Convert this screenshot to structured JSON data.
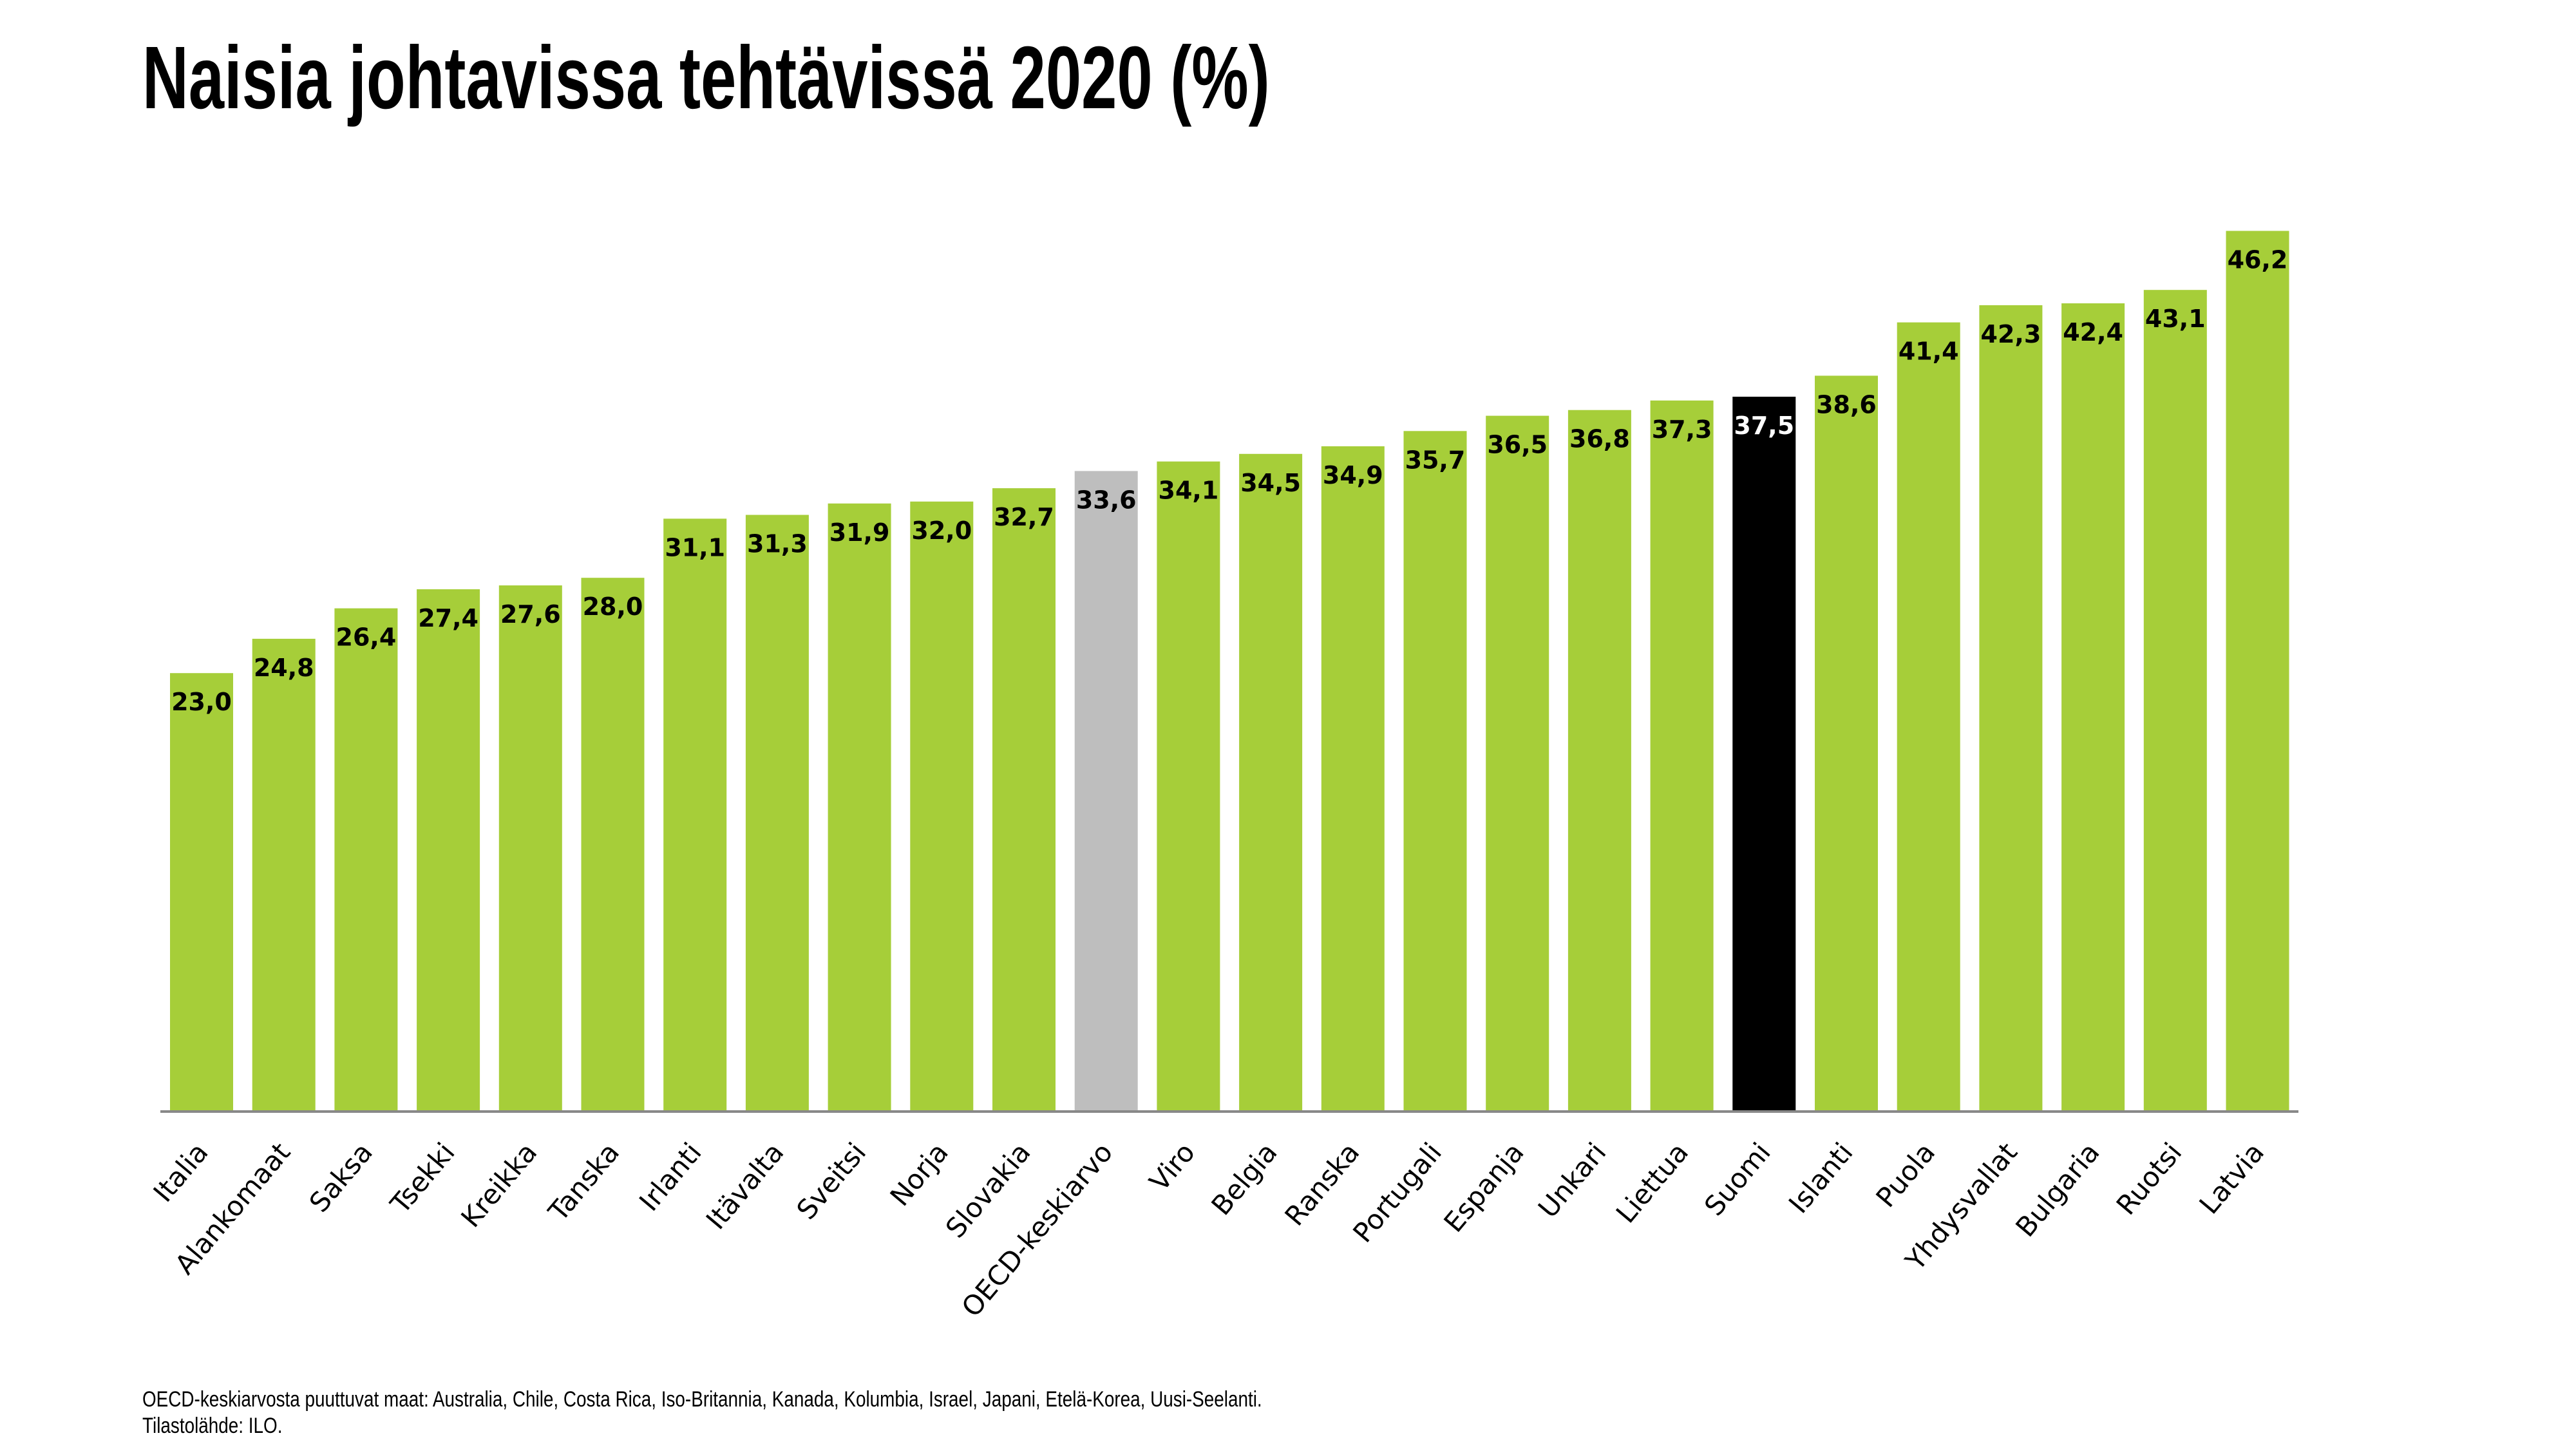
{
  "title": "Naisia johtavissa tehtävissä 2020 (%)",
  "footnote": {
    "line1": "OECD-keskiarvosta puuttuvat maat: Australia, Chile, Costa Rica, Iso-Britannia, Kanada, Kolumbia, Israel, Japani, Etelä-Korea, Uusi-Seelanti.",
    "line2": "Tilastolähde: ILO."
  },
  "colors": {
    "default": "#a6ce39",
    "oecd": "#bebebe",
    "highlight": "#000000",
    "axis": "#888888"
  },
  "chart_data": {
    "type": "bar",
    "title": "Naisia johtavissa tehtävissä 2020 (%)",
    "xlabel": "",
    "ylabel": "",
    "ylim": [
      0,
      50
    ],
    "grid": false,
    "legend": "none",
    "categories": [
      "Italia",
      "Alankomaat",
      "Saksa",
      "Tsekki",
      "Kreikka",
      "Tanska",
      "Irlanti",
      "Itävalta",
      "Sveitsi",
      "Norja",
      "Slovakia",
      "OECD-keskiarvo",
      "Viro",
      "Belgia",
      "Ranska",
      "Portugali",
      "Espanja",
      "Unkari",
      "Liettua",
      "Suomi",
      "Islanti",
      "Puola",
      "Yhdysvallat",
      "Bulgaria",
      "Ruotsi",
      "Latvia"
    ],
    "values": [
      23.0,
      24.8,
      26.4,
      27.4,
      27.6,
      28.0,
      31.1,
      31.3,
      31.9,
      32.0,
      32.7,
      33.6,
      34.1,
      34.5,
      34.9,
      35.7,
      36.5,
      36.8,
      37.3,
      37.5,
      38.6,
      41.4,
      42.3,
      42.4,
      43.1,
      46.2
    ],
    "value_labels": [
      "23,0",
      "24,8",
      "26,4",
      "27,4",
      "27,6",
      "28,0",
      "31,1",
      "31,3",
      "31,9",
      "32,0",
      "32,7",
      "33,6",
      "34,1",
      "34,5",
      "34,9",
      "35,7",
      "36,5",
      "36,8",
      "37,3",
      "37,5",
      "38,6",
      "41,4",
      "42,3",
      "42,4",
      "43,1",
      "46,2"
    ],
    "bar_styles": [
      "default",
      "default",
      "default",
      "default",
      "default",
      "default",
      "default",
      "default",
      "default",
      "default",
      "default",
      "oecd",
      "default",
      "default",
      "default",
      "default",
      "default",
      "default",
      "default",
      "highlight",
      "default",
      "default",
      "default",
      "default",
      "default",
      "default"
    ]
  }
}
